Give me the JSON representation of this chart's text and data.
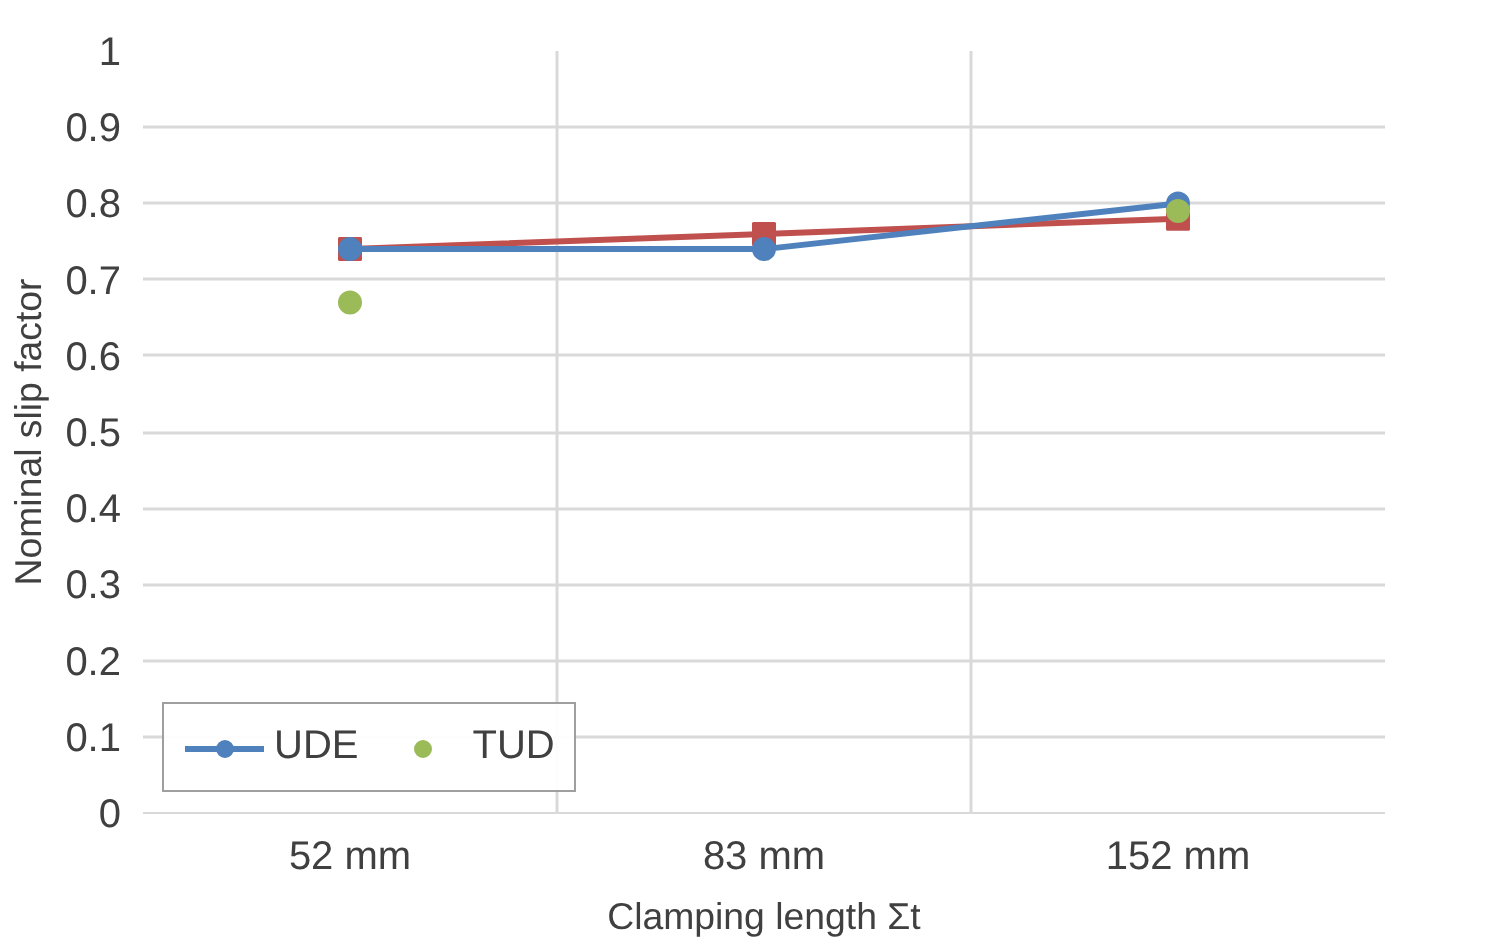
{
  "chart_data": {
    "type": "line",
    "xlabel": "Clamping length Σt",
    "ylabel": "Nominal slip factor",
    "categories": [
      "52 mm",
      "83 mm",
      "152 mm"
    ],
    "series": [
      {
        "color": "#c0504d",
        "values": [
          0.74,
          0.76,
          0.78
        ],
        "marker": "square"
      },
      {
        "name": "UDE",
        "color": "#4f81bd",
        "values": [
          0.74,
          0.74,
          0.8
        ],
        "marker": "circle"
      },
      {
        "name": "TUD",
        "type": "scatter",
        "color": "#9bbb59",
        "values": [
          0.67,
          null,
          0.79
        ],
        "marker": "circle"
      }
    ],
    "ylim": [
      0,
      1
    ],
    "yticks": [
      0,
      0.1,
      0.2,
      0.3,
      0.4,
      0.5,
      0.6,
      0.7,
      0.8,
      0.9,
      1
    ],
    "grid": true,
    "legend": "bottom left",
    "line_style": "solid"
  }
}
